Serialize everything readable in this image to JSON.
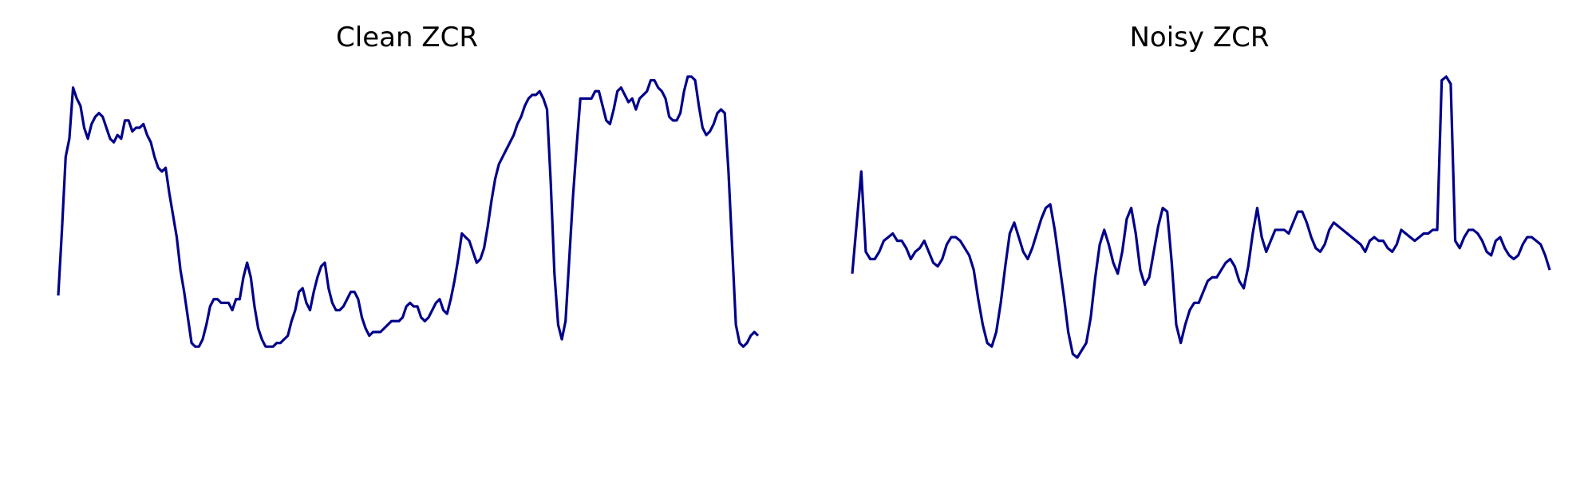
{
  "line_color": "#00008b",
  "chart_data": [
    {
      "type": "line",
      "title": "Clean ZCR",
      "xlabel": "",
      "ylabel": "",
      "grid": false,
      "axes_visible": false,
      "ylim": [
        0.0,
        1.0
      ],
      "values": [
        0.4,
        0.58,
        0.78,
        0.83,
        0.97,
        0.94,
        0.92,
        0.86,
        0.83,
        0.87,
        0.89,
        0.9,
        0.89,
        0.86,
        0.83,
        0.82,
        0.84,
        0.83,
        0.88,
        0.88,
        0.85,
        0.86,
        0.86,
        0.87,
        0.84,
        0.82,
        0.78,
        0.75,
        0.74,
        0.75,
        0.68,
        0.62,
        0.56,
        0.47,
        0.41,
        0.34,
        0.27,
        0.26,
        0.26,
        0.28,
        0.32,
        0.37,
        0.39,
        0.39,
        0.38,
        0.38,
        0.38,
        0.36,
        0.39,
        0.39,
        0.45,
        0.49,
        0.45,
        0.37,
        0.31,
        0.28,
        0.26,
        0.26,
        0.26,
        0.27,
        0.27,
        0.28,
        0.29,
        0.33,
        0.36,
        0.41,
        0.42,
        0.38,
        0.36,
        0.41,
        0.45,
        0.48,
        0.49,
        0.42,
        0.38,
        0.36,
        0.36,
        0.37,
        0.39,
        0.41,
        0.41,
        0.39,
        0.34,
        0.31,
        0.29,
        0.3,
        0.3,
        0.3,
        0.31,
        0.32,
        0.33,
        0.33,
        0.33,
        0.34,
        0.37,
        0.38,
        0.37,
        0.37,
        0.34,
        0.33,
        0.34,
        0.36,
        0.38,
        0.39,
        0.36,
        0.35,
        0.39,
        0.44,
        0.5,
        0.57,
        0.56,
        0.55,
        0.52,
        0.49,
        0.5,
        0.53,
        0.59,
        0.66,
        0.72,
        0.76,
        0.78,
        0.8,
        0.82,
        0.84,
        0.87,
        0.89,
        0.92,
        0.94,
        0.95,
        0.95,
        0.96,
        0.94,
        0.91,
        0.71,
        0.46,
        0.32,
        0.28,
        0.33,
        0.5,
        0.67,
        0.81,
        0.94,
        0.94,
        0.94,
        0.94,
        0.96,
        0.96,
        0.92,
        0.88,
        0.87,
        0.91,
        0.96,
        0.97,
        0.95,
        0.93,
        0.94,
        0.91,
        0.94,
        0.95,
        0.96,
        0.99,
        0.99,
        0.97,
        0.96,
        0.94,
        0.89,
        0.88,
        0.88,
        0.9,
        0.96,
        1.0,
        1.0,
        0.99,
        0.92,
        0.86,
        0.84,
        0.85,
        0.87,
        0.9,
        0.91,
        0.9,
        0.74,
        0.53,
        0.32,
        0.27,
        0.26,
        0.27,
        0.29,
        0.3,
        0.29
      ]
    },
    {
      "type": "line",
      "title": "Noisy ZCR",
      "xlabel": "",
      "ylabel": "",
      "grid": false,
      "axes_visible": false,
      "ylim": [
        0.0,
        1.0
      ],
      "values": [
        0.46,
        0.6,
        0.74,
        0.52,
        0.5,
        0.5,
        0.52,
        0.55,
        0.56,
        0.57,
        0.55,
        0.55,
        0.53,
        0.5,
        0.52,
        0.53,
        0.55,
        0.52,
        0.49,
        0.48,
        0.5,
        0.54,
        0.56,
        0.56,
        0.55,
        0.53,
        0.51,
        0.47,
        0.39,
        0.32,
        0.27,
        0.26,
        0.3,
        0.38,
        0.48,
        0.57,
        0.6,
        0.56,
        0.52,
        0.5,
        0.53,
        0.57,
        0.61,
        0.64,
        0.65,
        0.58,
        0.49,
        0.4,
        0.3,
        0.24,
        0.23,
        0.25,
        0.27,
        0.34,
        0.45,
        0.54,
        0.58,
        0.54,
        0.49,
        0.46,
        0.52,
        0.61,
        0.64,
        0.57,
        0.47,
        0.43,
        0.45,
        0.52,
        0.59,
        0.64,
        0.63,
        0.49,
        0.32,
        0.27,
        0.32,
        0.36,
        0.38,
        0.38,
        0.41,
        0.44,
        0.45,
        0.45,
        0.47,
        0.49,
        0.5,
        0.48,
        0.44,
        0.42,
        0.48,
        0.57,
        0.64,
        0.56,
        0.52,
        0.55,
        0.58,
        0.58,
        0.58,
        0.57,
        0.6,
        0.63,
        0.63,
        0.6,
        0.56,
        0.53,
        0.52,
        0.54,
        0.58,
        0.6,
        0.59,
        0.58,
        0.57,
        0.56,
        0.55,
        0.54,
        0.52,
        0.55,
        0.56,
        0.55,
        0.55,
        0.53,
        0.52,
        0.54,
        0.58,
        0.57,
        0.56,
        0.55,
        0.56,
        0.57,
        0.57,
        0.58,
        0.58,
        0.99,
        1.0,
        0.98,
        0.55,
        0.53,
        0.56,
        0.58,
        0.58,
        0.57,
        0.55,
        0.52,
        0.51,
        0.55,
        0.56,
        0.53,
        0.51,
        0.5,
        0.51,
        0.54,
        0.56,
        0.56,
        0.55,
        0.54,
        0.51,
        0.47
      ]
    }
  ]
}
